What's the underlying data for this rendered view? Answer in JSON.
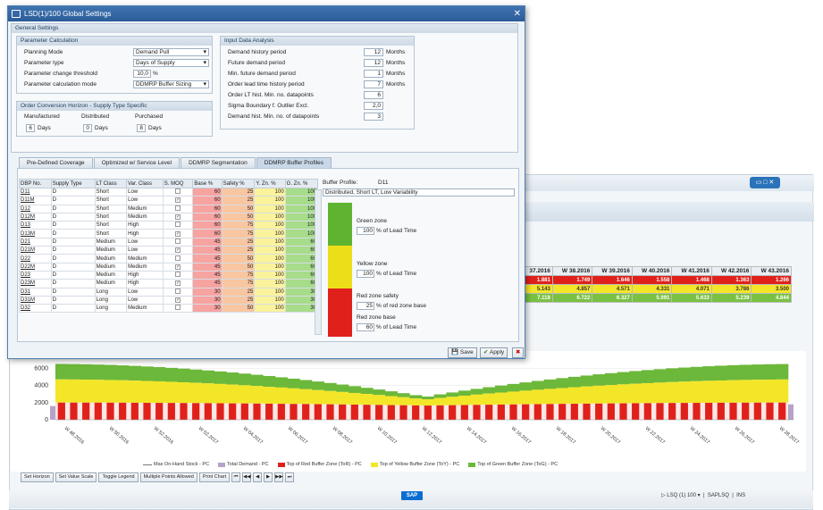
{
  "dialog": {
    "title": "LSD(1)/100 Global Settings",
    "general_settings": "General Settings",
    "param_calc": {
      "header": "Parameter Calculation",
      "rows": [
        {
          "label": "Planning Mode",
          "value": "Demand Pull"
        },
        {
          "label": "Parameter type",
          "value": "Days of Supply"
        },
        {
          "label": "Parameter change threshold",
          "value": "10,0",
          "unit": "%"
        },
        {
          "label": "Parameter calculation mode",
          "value": "DDMRP Buffer Sizing"
        }
      ]
    },
    "order_horizon": {
      "header": "Order Conversion Horizon - Supply Type Specific",
      "labels": [
        "Manufactured",
        "Distributed",
        "Purchased"
      ],
      "values": [
        "6",
        "0",
        "8"
      ],
      "unit": "Days"
    },
    "input_data": {
      "header": "Input Data Analysis",
      "rows": [
        {
          "label": "Demand history period",
          "value": "12",
          "unit": "Months"
        },
        {
          "label": "Future demand period",
          "value": "12",
          "unit": "Months"
        },
        {
          "label": "Min. future demand period",
          "value": "1",
          "unit": "Months"
        },
        {
          "label": "Order lead time history period",
          "value": "7",
          "unit": "Months"
        },
        {
          "label": "Order LT hist. Min. no. datapoints",
          "value": "6",
          "unit": ""
        },
        {
          "label": "Sigma Boundary f. Outlier Excl.",
          "value": "2,0",
          "unit": ""
        },
        {
          "label": "Demand hist. Min. no. of datapoints",
          "value": "3",
          "unit": ""
        }
      ]
    },
    "tabs": [
      "Pre-Defined Coverage",
      "Optimized w/ Service Level",
      "DDMRP Segmentation",
      "DDMRP Buffer Profiles"
    ],
    "dbp_table": {
      "headers": [
        "DBP No.",
        "Supply Type",
        "LT Class",
        "Var. Class",
        "S. MOQ",
        "Base %",
        "Safety %",
        "Y. Zn. %",
        "G. Zn. %"
      ],
      "rows": [
        [
          "D11",
          "D",
          "Short",
          "Low",
          "",
          "60",
          "25",
          "100",
          "100"
        ],
        [
          "D11M",
          "D",
          "Short",
          "Low",
          "x",
          "60",
          "25",
          "100",
          "100"
        ],
        [
          "D12",
          "D",
          "Short",
          "Medium",
          "",
          "60",
          "50",
          "100",
          "100"
        ],
        [
          "D12M",
          "D",
          "Short",
          "Medium",
          "x",
          "60",
          "50",
          "100",
          "100"
        ],
        [
          "D13",
          "D",
          "Short",
          "High",
          "",
          "60",
          "75",
          "100",
          "100"
        ],
        [
          "D13M",
          "D",
          "Short",
          "High",
          "x",
          "60",
          "75",
          "100",
          "100"
        ],
        [
          "D21",
          "D",
          "Medium",
          "Low",
          "",
          "45",
          "25",
          "100",
          "60"
        ],
        [
          "D21M",
          "D",
          "Medium",
          "Low",
          "x",
          "45",
          "25",
          "100",
          "60"
        ],
        [
          "D22",
          "D",
          "Medium",
          "Medium",
          "",
          "45",
          "50",
          "100",
          "60"
        ],
        [
          "D22M",
          "D",
          "Medium",
          "Medium",
          "x",
          "45",
          "50",
          "100",
          "60"
        ],
        [
          "D23",
          "D",
          "Medium",
          "High",
          "",
          "45",
          "75",
          "100",
          "60"
        ],
        [
          "D23M",
          "D",
          "Medium",
          "High",
          "x",
          "45",
          "75",
          "100",
          "60"
        ],
        [
          "D31",
          "D",
          "Long",
          "Low",
          "",
          "30",
          "25",
          "100",
          "30"
        ],
        [
          "D31M",
          "D",
          "Long",
          "Low",
          "x",
          "30",
          "25",
          "100",
          "30"
        ],
        [
          "D32",
          "D",
          "Long",
          "Medium",
          "",
          "30",
          "50",
          "100",
          "30"
        ]
      ]
    },
    "buffer_profile": {
      "label": "Buffer Profile:",
      "value": "D11",
      "description": "Distributed, Short LT, Low Variability",
      "green_zone": "Green zone",
      "green_value": "100",
      "green_unit": "% of Lead Time",
      "yellow_zone": "Yellow zone",
      "yellow_value": "100",
      "yellow_unit": "% of Lead Time",
      "red_safety": "Red zone safety",
      "red_safety_value": "25",
      "red_safety_unit": "% of red zone base",
      "red_base": "Red zone base",
      "red_base_value": "60",
      "red_base_unit": "% of Lead Time"
    },
    "buttons": {
      "save": "Save",
      "apply": "Apply"
    }
  },
  "weekly_table": {
    "headers": [
      "37.2016",
      "W 38.2016",
      "W 39.2016",
      "W 40.2016",
      "W 41.2016",
      "W 42.2016",
      "W 43.2016"
    ],
    "red": [
      "1.881",
      "1.749",
      "1.646",
      "1.558",
      "1.468",
      "1.363",
      "1.266"
    ],
    "yellow": [
      "5.143",
      "4.857",
      "4.571",
      "4.331",
      "4.071",
      "3.786",
      "3.500"
    ],
    "green": [
      "7.118",
      "6.722",
      "6.327",
      "5.991",
      "5.633",
      "5.239",
      "4.844"
    ]
  },
  "chart_data": {
    "type": "area",
    "ylim": [
      0,
      8000
    ],
    "yticks": [
      "6000",
      "4000",
      "2000",
      "0"
    ],
    "x_labels": [
      "W 48.2016",
      "W 50.2016",
      "W 52.2016",
      "W 02.2017",
      "W 04.2017",
      "W 06.2017",
      "W 08.2017",
      "W 10.2017",
      "W 12.2017",
      "W 14.2017",
      "W 16.2017",
      "W 18.2017",
      "W 20.2017",
      "W 22.2017",
      "W 24.2017",
      "W 26.2017",
      "W 28.2017"
    ],
    "series_names": [
      "Max On-Hand Stock - PC",
      "Total Demand - PC",
      "Top of Red Buffer Zone (ToR) - PC",
      "Top of Yellow Buffer Zone (ToY) - PC",
      "Top of Green Buffer Zone (ToG) - PC"
    ],
    "colors": {
      "red": "#e0211b",
      "yellow": "#f3e629",
      "green": "#6cb83a",
      "demand": "#b5a3c8"
    }
  },
  "toolbar": {
    "buttons": [
      "Set Horizon",
      "Set Value Scale",
      "Toggle Legend",
      "Multiple Points Allowed",
      "Print Chart"
    ]
  },
  "statusbar": {
    "sap": "SAP",
    "session": "LSQ (1) 100",
    "server": "SAPLSQ",
    "mode": "INS"
  }
}
